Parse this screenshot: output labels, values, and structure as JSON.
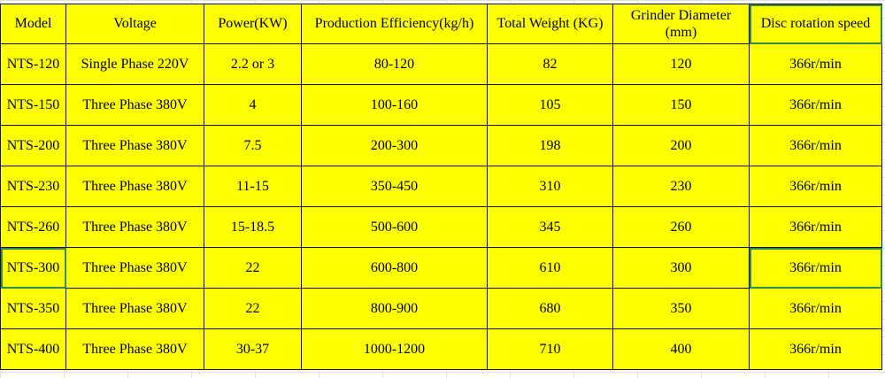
{
  "table": {
    "headers": [
      "Model",
      "Voltage",
      "Power(KW)",
      "Production Efficiency(kg/h)",
      "Total Weight (KG)",
      "Grinder Diameter (mm)",
      "Disc rotation speed"
    ],
    "rows": [
      [
        "NTS-120",
        "Single Phase 220V",
        "2.2 or 3",
        "80-120",
        "82",
        "120",
        "366r/min"
      ],
      [
        "NTS-150",
        "Three Phase 380V",
        "4",
        "100-160",
        "105",
        "150",
        "366r/min"
      ],
      [
        "NTS-200",
        "Three Phase 380V",
        "7.5",
        "200-300",
        "198",
        "200",
        "366r/min"
      ],
      [
        "NTS-230",
        "Three Phase 380V",
        "11-15",
        "350-450",
        "310",
        "230",
        "366r/min"
      ],
      [
        "NTS-260",
        "Three Phase 380V",
        "15-18.5",
        "500-600",
        "345",
        "260",
        "366r/min"
      ],
      [
        "NTS-300",
        "Three Phase 380V",
        "22",
        "600-800",
        "610",
        "300",
        "366r/min"
      ],
      [
        "NTS-350",
        "Three Phase 380V",
        "22",
        "800-900",
        "680",
        "350",
        "366r/min"
      ],
      [
        "NTS-400",
        "Three Phase 380V",
        "30-37",
        "1000-1200",
        "710",
        "400",
        "366r/min"
      ]
    ]
  },
  "colors": {
    "cell_fill": "#ffff00",
    "border": "#111111",
    "selection": "#2e8b57"
  }
}
